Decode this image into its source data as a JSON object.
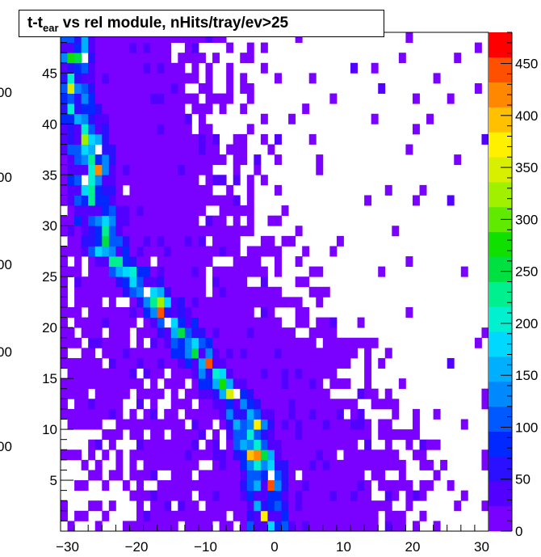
{
  "chart_data": {
    "type": "heatmap",
    "title": {
      "main": "t-t",
      "sub": "ear",
      "rest": " vs rel module, nHits/tray/ev>25"
    },
    "xlabel": "",
    "ylabel": "",
    "xlim": [
      -31,
      31
    ],
    "ylim": [
      0,
      49
    ],
    "x_ticks": [
      -30,
      -20,
      -10,
      0,
      10,
      20,
      30
    ],
    "y_ticks": [
      5,
      10,
      15,
      20,
      25,
      30,
      35,
      40,
      45
    ],
    "y_ticks_cut_left": [
      "00",
      "00",
      "00",
      "00",
      "00"
    ],
    "bins_x": 62,
    "bins_y": 49,
    "zlim": [
      0,
      480
    ],
    "z_ticks": [
      0,
      50,
      100,
      150,
      200,
      250,
      300,
      350,
      400,
      450
    ],
    "palette": [
      "#7a00ff",
      "#5200ff",
      "#2a10ff",
      "#0028ff",
      "#0058ff",
      "#0088ff",
      "#00b0ff",
      "#00d8ff",
      "#00f0d0",
      "#00f090",
      "#00e040",
      "#10e000",
      "#60ea00",
      "#a0f000",
      "#d8f000",
      "#fff000",
      "#ffc000",
      "#ff8800",
      "#ff5000",
      "#ff0000"
    ],
    "color_ridge": "#00c8ff",
    "description_bands": [
      {
        "name": "diagonal band",
        "path": [
          [
            -29,
            42
          ],
          [
            -27,
            38
          ],
          [
            -26,
            32
          ],
          [
            -24,
            27
          ],
          [
            -20,
            25
          ],
          [
            -15,
            21
          ],
          [
            -11,
            17
          ],
          [
            -7,
            14
          ],
          [
            -4,
            11
          ],
          [
            -2,
            7
          ],
          [
            -1,
            3
          ]
        ]
      }
    ]
  }
}
